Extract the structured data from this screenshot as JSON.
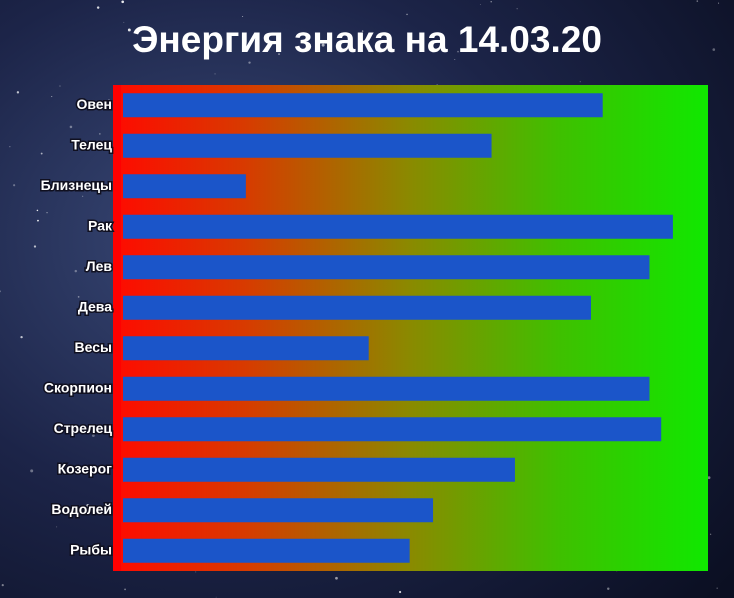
{
  "chart_data": {
    "type": "bar",
    "orientation": "horizontal",
    "title": "Энергия знака на 14.03.20",
    "categories": [
      "Овен",
      "Телец",
      "Близнецы",
      "Рак",
      "Лев",
      "Дева",
      "Весы",
      "Скорпион",
      "Стрелец",
      "Козерог",
      "Водолей",
      "Рыбы"
    ],
    "values": [
      82,
      63,
      21,
      94,
      90,
      80,
      42,
      90,
      92,
      67,
      53,
      49
    ],
    "color": "#1b55c9",
    "xlim": [
      0,
      100
    ]
  }
}
